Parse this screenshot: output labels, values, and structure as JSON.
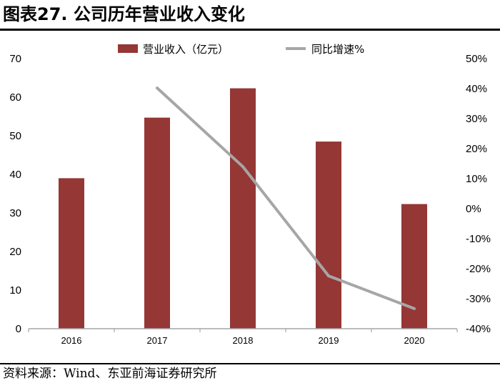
{
  "figure": {
    "title": "图表27. 公司历年营业收入变化",
    "source": "资料来源：Wind、东亚前海证券研究所"
  },
  "colors": {
    "bar": "#953735",
    "line": "#a6a6a6",
    "axis": "#a6a6a6"
  },
  "chart_data": {
    "type": "bar",
    "categories": [
      "2016",
      "2017",
      "2018",
      "2019",
      "2020"
    ],
    "series": [
      {
        "name": "营业收入（亿元）",
        "type": "bar",
        "axis": "left",
        "values": [
          39.0,
          54.7,
          62.3,
          48.5,
          32.3
        ]
      },
      {
        "name": "同比增速%",
        "type": "line",
        "axis": "right",
        "values": [
          null,
          40.2,
          14.0,
          -22.4,
          -33.3
        ]
      }
    ],
    "ylim": [
      0,
      70
    ],
    "y_ticks": [
      "0",
      "10",
      "20",
      "30",
      "40",
      "50",
      "60",
      "70"
    ],
    "y2lim": [
      -40,
      50
    ],
    "y2_ticks": [
      "-40%",
      "-30%",
      "-20%",
      "-10%",
      "0%",
      "10%",
      "20%",
      "30%",
      "40%",
      "50%"
    ],
    "grid": false,
    "legend_position": "top"
  }
}
